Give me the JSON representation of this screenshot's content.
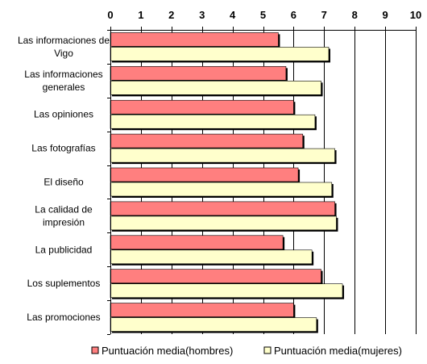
{
  "chart_data": {
    "type": "bar",
    "orientation": "horizontal",
    "categories": [
      "Las informaciones de Vigo",
      "Las informaciones generales",
      "Las opiniones",
      "Las fotografías",
      "El diseño",
      "La calidad de impresión",
      "La publicidad",
      "Los suplementos",
      "Las promociones"
    ],
    "category_lines": [
      [
        "Las informaciones de",
        "Vigo"
      ],
      [
        "Las informaciones",
        "generales"
      ],
      [
        "Las opiniones"
      ],
      [
        "Las fotografías"
      ],
      [
        "El diseño"
      ],
      [
        "La calidad de",
        "impresión"
      ],
      [
        "La publicidad"
      ],
      [
        "Los suplementos"
      ],
      [
        "Las promociones"
      ]
    ],
    "series": [
      {
        "name": "Puntuación media(hombres)",
        "color": "#ff7f7f",
        "values": [
          5.5,
          5.75,
          6.0,
          6.3,
          6.15,
          7.35,
          5.65,
          6.9,
          6.0
        ]
      },
      {
        "name": "Puntuación media(mujeres)",
        "color": "#ffffcc",
        "values": [
          7.15,
          6.9,
          6.7,
          7.35,
          7.25,
          7.4,
          6.6,
          7.6,
          6.75
        ]
      }
    ],
    "x_ticks": [
      0,
      1,
      2,
      3,
      4,
      5,
      6,
      7,
      8,
      9,
      10
    ],
    "xlim": [
      0,
      10
    ],
    "axis_position": "top",
    "grid": true,
    "legend_position": "bottom",
    "title": "",
    "xlabel": "",
    "ylabel": ""
  }
}
